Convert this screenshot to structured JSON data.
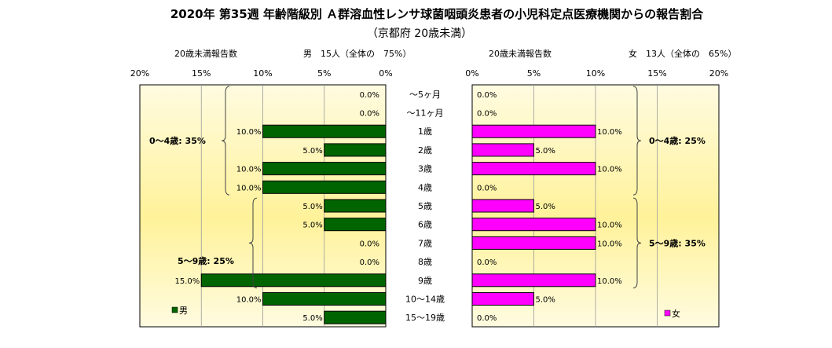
{
  "title": "2020年 第35週 年齢階級別 Ａ群溶血性レンサ球菌咽頭炎患者の小児科定点医療機関からの報告割合",
  "subtitle": "（京都府 20歳未満）",
  "colors": {
    "male": "#006400",
    "female": "#ff00ff",
    "panel_bg_start": "#fffbe0",
    "panel_bg_end": "#fff29a"
  },
  "chart_data": {
    "type": "bar",
    "orientation": "horizontal-butterfly",
    "categories": [
      "～5ヶ月",
      "～11ヶ月",
      "1歳",
      "2歳",
      "3歳",
      "4歳",
      "5歳",
      "6歳",
      "7歳",
      "8歳",
      "9歳",
      "10～14歳",
      "15～19歳"
    ],
    "xlim": [
      0,
      20
    ],
    "ticks": [
      "0%",
      "5%",
      "10%",
      "15%",
      "20%"
    ],
    "male": {
      "header_left": "20歳未満報告数",
      "header_right": "男　15人（全体の　75%）",
      "legend": "男",
      "values": [
        0,
        0,
        10,
        5,
        10,
        10,
        5,
        5,
        0,
        0,
        15,
        10,
        5
      ],
      "labels": [
        "0.0%",
        "0.0%",
        "10.0%",
        "5.0%",
        "10.0%",
        "10.0%",
        "5.0%",
        "5.0%",
        "0.0%",
        "0.0%",
        "15.0%",
        "10.0%",
        "5.0%"
      ],
      "groups": [
        {
          "label": "0～4歳: 35%",
          "from": 0,
          "to": 5
        },
        {
          "label": "5～9歳: 25%",
          "from": 6,
          "to": 10
        }
      ]
    },
    "female": {
      "header_left": "20歳未満報告数",
      "header_right": "女　13人（全体の　65%）",
      "legend": "女",
      "values": [
        0,
        0,
        10,
        5,
        10,
        0,
        5,
        10,
        10,
        0,
        10,
        5,
        0
      ],
      "labels": [
        "0.0%",
        "0.0%",
        "10.0%",
        "5.0%",
        "10.0%",
        "0.0%",
        "5.0%",
        "10.0%",
        "10.0%",
        "0.0%",
        "10.0%",
        "5.0%",
        "0.0%"
      ],
      "groups": [
        {
          "label": "0～4歳: 25%",
          "from": 0,
          "to": 5
        },
        {
          "label": "5～9歳: 35%",
          "from": 6,
          "to": 10
        }
      ]
    }
  }
}
